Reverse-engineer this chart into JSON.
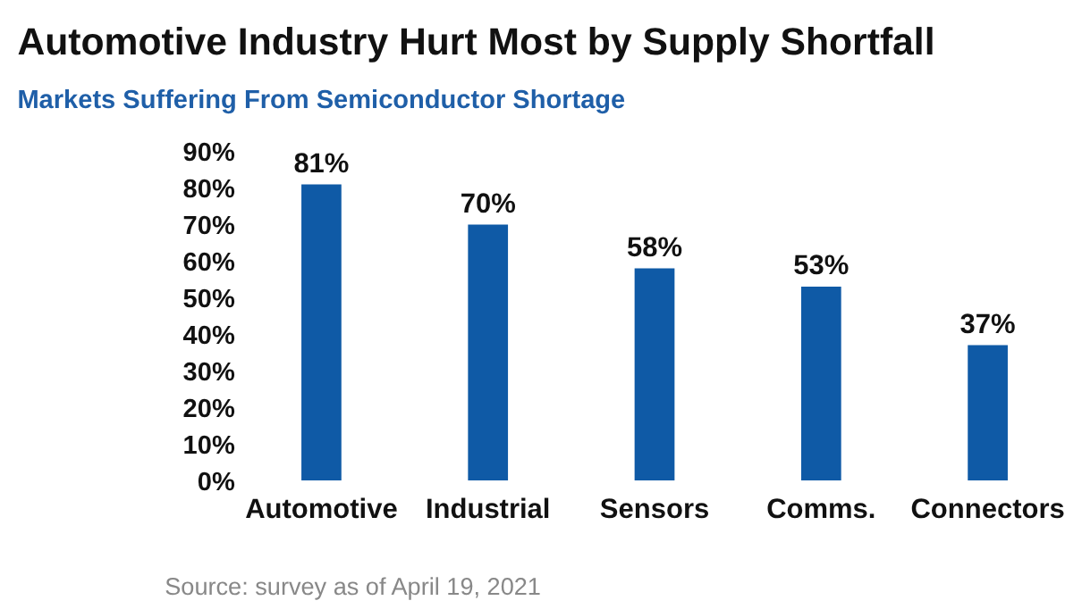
{
  "chart_data": {
    "type": "bar",
    "title": "Automotive Industry Hurt Most by Supply Shortfall",
    "subtitle": "Markets Suffering From Semiconductor Shortage",
    "categories": [
      "Automotive",
      "Industrial",
      "Sensors",
      "Comms.",
      "Connectors"
    ],
    "values": [
      81,
      70,
      58,
      53,
      37
    ],
    "color": "#0f5aa6",
    "value_labels": [
      "81%",
      "70%",
      "58%",
      "53%",
      "37%"
    ],
    "ylim": [
      0,
      90
    ],
    "yticks": [
      {
        "value": 0,
        "label": "0%"
      },
      {
        "value": 10,
        "label": "10%"
      },
      {
        "value": 20,
        "label": "20%"
      },
      {
        "value": 30,
        "label": "30%"
      },
      {
        "value": 40,
        "label": "40%"
      },
      {
        "value": 50,
        "label": "50%"
      },
      {
        "value": 60,
        "label": "60%"
      },
      {
        "value": 70,
        "label": "70%"
      },
      {
        "value": 80,
        "label": "80%"
      },
      {
        "value": 90,
        "label": "90%"
      }
    ],
    "grid": false,
    "annotations": [
      "Source: survey as of April 19, 2021"
    ]
  }
}
